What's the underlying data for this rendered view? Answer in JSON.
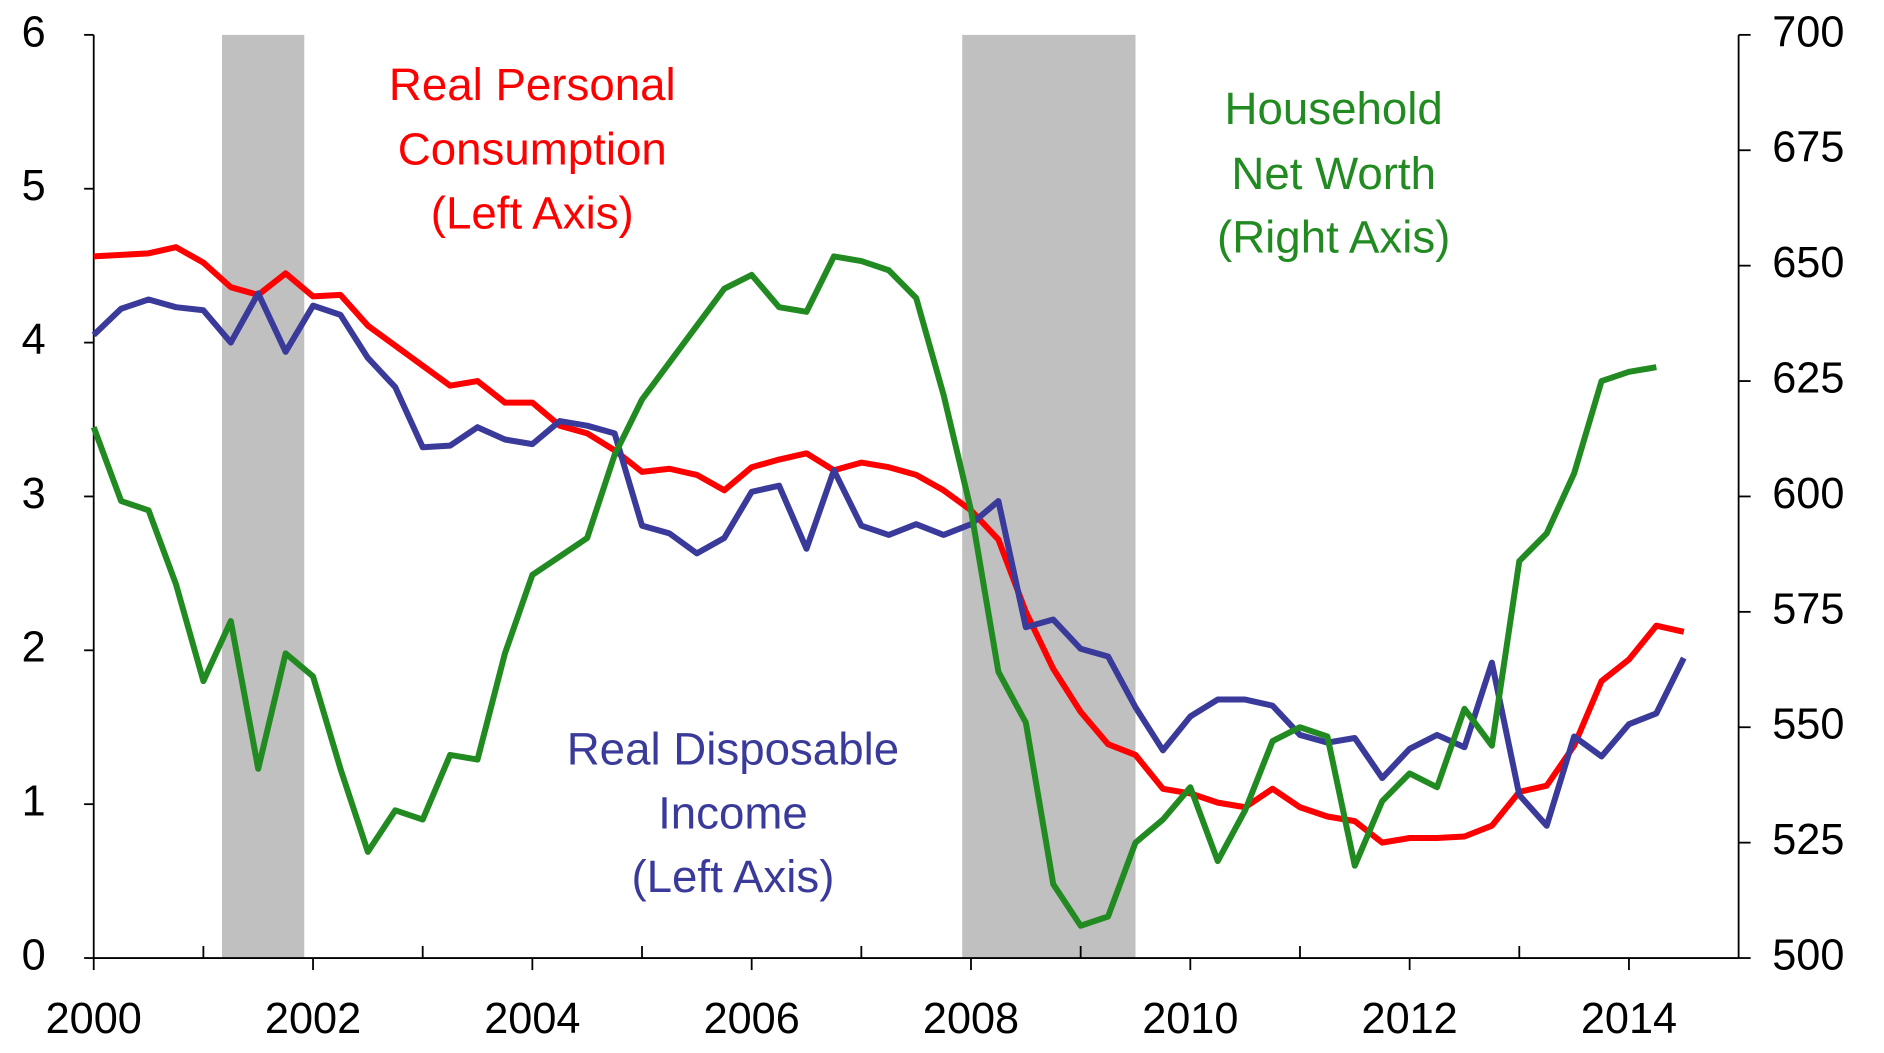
{
  "chart_data": {
    "type": "line",
    "xlim": [
      2000,
      2015
    ],
    "xticks": [
      2000,
      2002,
      2004,
      2006,
      2008,
      2010,
      2012,
      2014
    ],
    "xminor_ticks": [
      2001,
      2003,
      2005,
      2007,
      2009,
      2011,
      2013
    ],
    "ylim": [
      0,
      6
    ],
    "yticks": [
      0,
      1,
      2,
      3,
      4,
      5,
      6
    ],
    "y2lim": [
      500,
      700
    ],
    "y2ticks": [
      500,
      525,
      550,
      575,
      600,
      625,
      650,
      675,
      700
    ],
    "shaded_periods": [
      [
        2001.17,
        2001.92
      ],
      [
        2007.92,
        2009.5
      ]
    ],
    "shade_color": "#c0c0c0",
    "annotations": [
      {
        "lines": [
          "Real Personal",
          "Consumption",
          "(Left Axis)"
        ],
        "color": "#ff0000"
      },
      {
        "lines": [
          "Household",
          "Net Worth",
          "(Right Axis)"
        ],
        "color": "#218b21"
      },
      {
        "lines": [
          "Real Disposable",
          "Income",
          "(Left Axis)"
        ],
        "color": "#3a3a9a"
      }
    ],
    "x": [
      2000,
      2000.25,
      2000.5,
      2000.75,
      2001,
      2001.25,
      2001.5,
      2001.75,
      2002,
      2002.25,
      2002.5,
      2002.75,
      2003,
      2003.25,
      2003.5,
      2003.75,
      2004,
      2004.25,
      2004.5,
      2004.75,
      2005,
      2005.25,
      2005.5,
      2005.75,
      2006,
      2006.25,
      2006.5,
      2006.75,
      2007,
      2007.25,
      2007.5,
      2007.75,
      2008,
      2008.25,
      2008.5,
      2008.75,
      2009,
      2009.25,
      2009.5,
      2009.75,
      2010,
      2010.25,
      2010.5,
      2010.75,
      2011,
      2011.25,
      2011.5,
      2011.75,
      2012,
      2012.25,
      2012.5,
      2012.75,
      2013,
      2013.25,
      2013.5,
      2013.75,
      2014,
      2014.25,
      2014.5
    ],
    "series": [
      {
        "name": "Real Personal Consumption",
        "color": "#ff0000",
        "axis": "y",
        "values": [
          4.56,
          4.57,
          4.58,
          4.62,
          4.52,
          4.36,
          4.31,
          4.45,
          4.3,
          4.31,
          4.11,
          3.98,
          3.85,
          3.72,
          3.75,
          3.61,
          3.61,
          3.46,
          3.41,
          3.3,
          3.16,
          3.18,
          3.14,
          3.04,
          3.19,
          3.24,
          3.28,
          3.17,
          3.22,
          3.19,
          3.14,
          3.04,
          2.91,
          2.72,
          2.25,
          1.88,
          1.6,
          1.39,
          1.32,
          1.1,
          1.07,
          1.01,
          0.98,
          1.1,
          0.98,
          0.92,
          0.89,
          0.75,
          0.78,
          0.78,
          0.79,
          0.86,
          1.08,
          1.12,
          1.38,
          1.8,
          1.94,
          2.16,
          2.12
        ]
      },
      {
        "name": "Real Disposable Income",
        "color": "#3a3a9a",
        "axis": "y",
        "values": [
          4.05,
          4.22,
          4.28,
          4.23,
          4.21,
          4.0,
          4.32,
          3.94,
          4.24,
          4.18,
          3.9,
          3.71,
          3.32,
          3.33,
          3.45,
          3.37,
          3.34,
          3.49,
          3.46,
          3.41,
          2.81,
          2.76,
          2.63,
          2.73,
          3.03,
          3.07,
          2.66,
          3.17,
          2.81,
          2.75,
          2.82,
          2.75,
          2.82,
          2.97,
          2.15,
          2.2,
          2.01,
          1.96,
          1.63,
          1.35,
          1.57,
          1.68,
          1.68,
          1.64,
          1.45,
          1.4,
          1.43,
          1.17,
          1.36,
          1.45,
          1.37,
          1.92,
          1.06,
          0.86,
          1.44,
          1.31,
          1.52,
          1.59,
          1.95
        ]
      },
      {
        "name": "Household Net Worth",
        "color": "#218b21",
        "axis": "y2",
        "values": [
          615,
          599,
          597,
          581,
          560,
          573,
          541,
          566,
          561,
          541,
          523,
          532,
          530,
          544,
          543,
          566,
          583,
          587,
          591,
          609,
          621,
          629,
          637,
          645,
          648,
          641,
          640,
          652,
          651,
          649,
          643,
          622,
          597,
          562,
          551,
          516,
          507,
          509,
          525,
          530,
          537,
          521,
          532,
          547,
          550,
          548,
          520,
          534,
          540,
          537,
          554,
          546,
          586,
          592,
          605,
          625,
          627,
          628,
          null
        ]
      }
    ]
  }
}
